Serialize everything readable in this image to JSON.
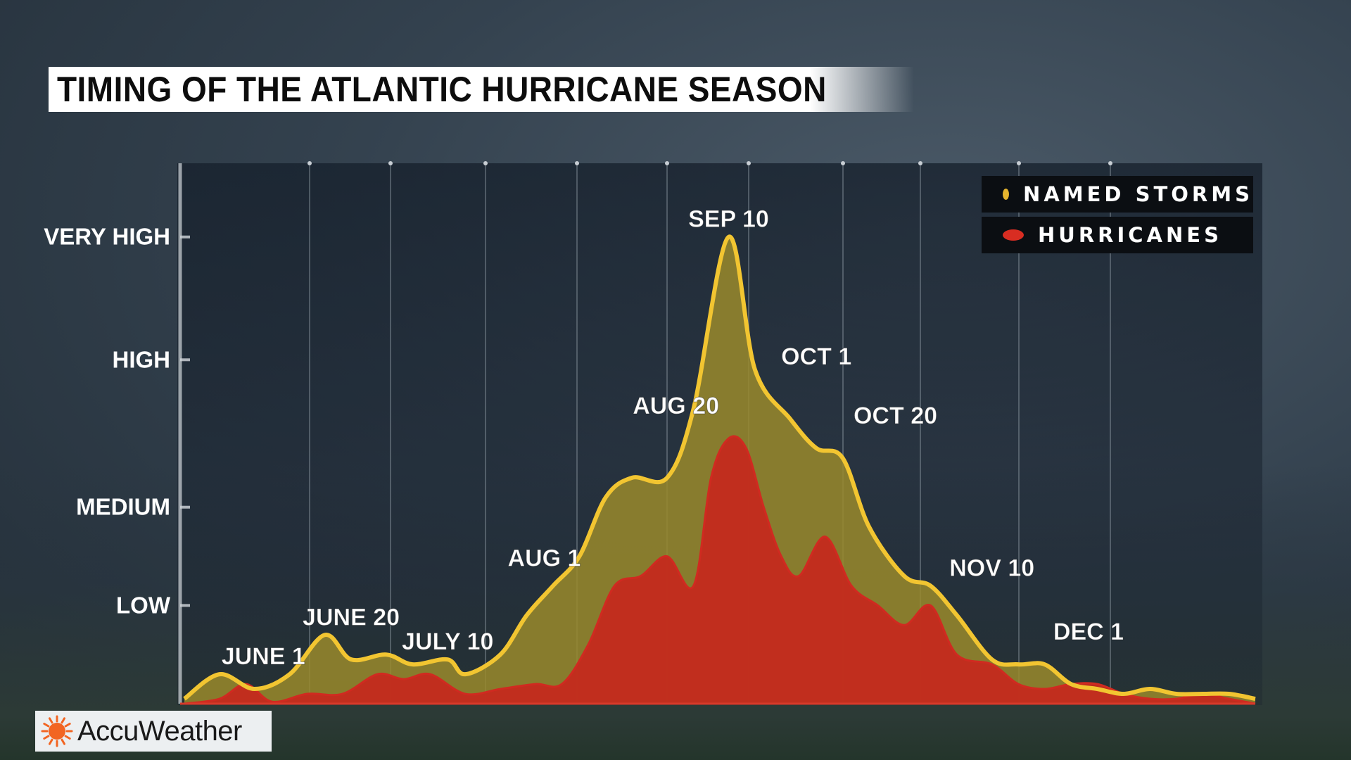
{
  "title": "TIMING OF THE ATLANTIC HURRICANE SEASON",
  "logo": {
    "name": "AccuWeather",
    "icon": "sun-icon",
    "color": "#f26522"
  },
  "legend": [
    {
      "label": "NAMED STORMS",
      "color": "#e6b52e"
    },
    {
      "label": "HURRICANES",
      "color": "#d82d22"
    }
  ],
  "colors": {
    "named_storms_line": "#f2c531",
    "named_storms_fill": "#9a8a2c",
    "hurricanes_fill": "#c42a1e",
    "hurricanes_line": "#d02a20"
  },
  "chart_data": {
    "type": "area",
    "title": "TIMING OF THE ATLANTIC HURRICANE SEASON",
    "xlabel": "",
    "ylabel": "",
    "y_levels": [
      {
        "label": "LOW",
        "value": 1
      },
      {
        "label": "MEDIUM",
        "value": 2
      },
      {
        "label": "HIGH",
        "value": 3.5
      },
      {
        "label": "VERY HIGH",
        "value": 4.75
      }
    ],
    "ylim": [
      0,
      5.5
    ],
    "xlim": [
      0,
      122
    ],
    "grid": "vertical",
    "legend_position": "top-right",
    "series": [
      {
        "name": "NAMED STORMS",
        "x": [
          0,
          4,
          8,
          12,
          16,
          19,
          23,
          26,
          30,
          32,
          36,
          39,
          42,
          45,
          48,
          51,
          55,
          58,
          62,
          65,
          69,
          72,
          75,
          78,
          82,
          85,
          88,
          92,
          95,
          98,
          101,
          104,
          107,
          110,
          113,
          116,
          119,
          122
        ],
        "y": [
          0.05,
          0.3,
          0.15,
          0.3,
          0.7,
          0.45,
          0.5,
          0.4,
          0.45,
          0.3,
          0.5,
          0.9,
          1.2,
          1.5,
          2.1,
          2.3,
          2.3,
          3.0,
          4.75,
          3.4,
          2.9,
          2.6,
          2.5,
          1.8,
          1.3,
          1.2,
          0.9,
          0.45,
          0.4,
          0.4,
          0.2,
          0.15,
          0.1,
          0.15,
          0.1,
          0.1,
          0.1,
          0.05
        ],
        "annotations": [
          {
            "x": 9,
            "y": 0.3,
            "label": "JUNE 1"
          },
          {
            "x": 19,
            "y": 0.7,
            "label": "JUNE 20"
          },
          {
            "x": 30,
            "y": 0.45,
            "label": "JULY 10"
          },
          {
            "x": 41,
            "y": 1.3,
            "label": "AUG 1"
          },
          {
            "x": 56,
            "y": 2.85,
            "label": "AUG 20"
          },
          {
            "x": 62,
            "y": 4.75,
            "label": "SEP 10"
          },
          {
            "x": 72,
            "y": 3.35,
            "label": "OCT 1"
          },
          {
            "x": 81,
            "y": 2.75,
            "label": "OCT 20"
          },
          {
            "x": 92,
            "y": 1.2,
            "label": "NOV 10"
          },
          {
            "x": 103,
            "y": 0.55,
            "label": "DEC 1"
          }
        ]
      },
      {
        "name": "HURRICANES",
        "x": [
          0,
          4,
          7,
          10,
          14,
          18,
          22,
          25,
          28,
          32,
          36,
          40,
          43,
          46,
          49,
          52,
          55,
          58,
          60,
          62,
          64,
          66,
          68,
          70,
          73,
          76,
          79,
          82,
          85,
          88,
          92,
          95,
          98,
          101,
          104,
          107,
          110,
          113,
          116,
          119,
          122
        ],
        "y": [
          0.0,
          0.05,
          0.2,
          0.02,
          0.1,
          0.1,
          0.3,
          0.25,
          0.3,
          0.1,
          0.15,
          0.2,
          0.2,
          0.6,
          1.2,
          1.3,
          1.5,
          1.2,
          2.3,
          2.7,
          2.6,
          2.0,
          1.5,
          1.3,
          1.7,
          1.2,
          1.0,
          0.8,
          1.0,
          0.5,
          0.4,
          0.2,
          0.15,
          0.2,
          0.2,
          0.1,
          0.05,
          0.05,
          0.1,
          0.05,
          0.0
        ]
      }
    ]
  }
}
